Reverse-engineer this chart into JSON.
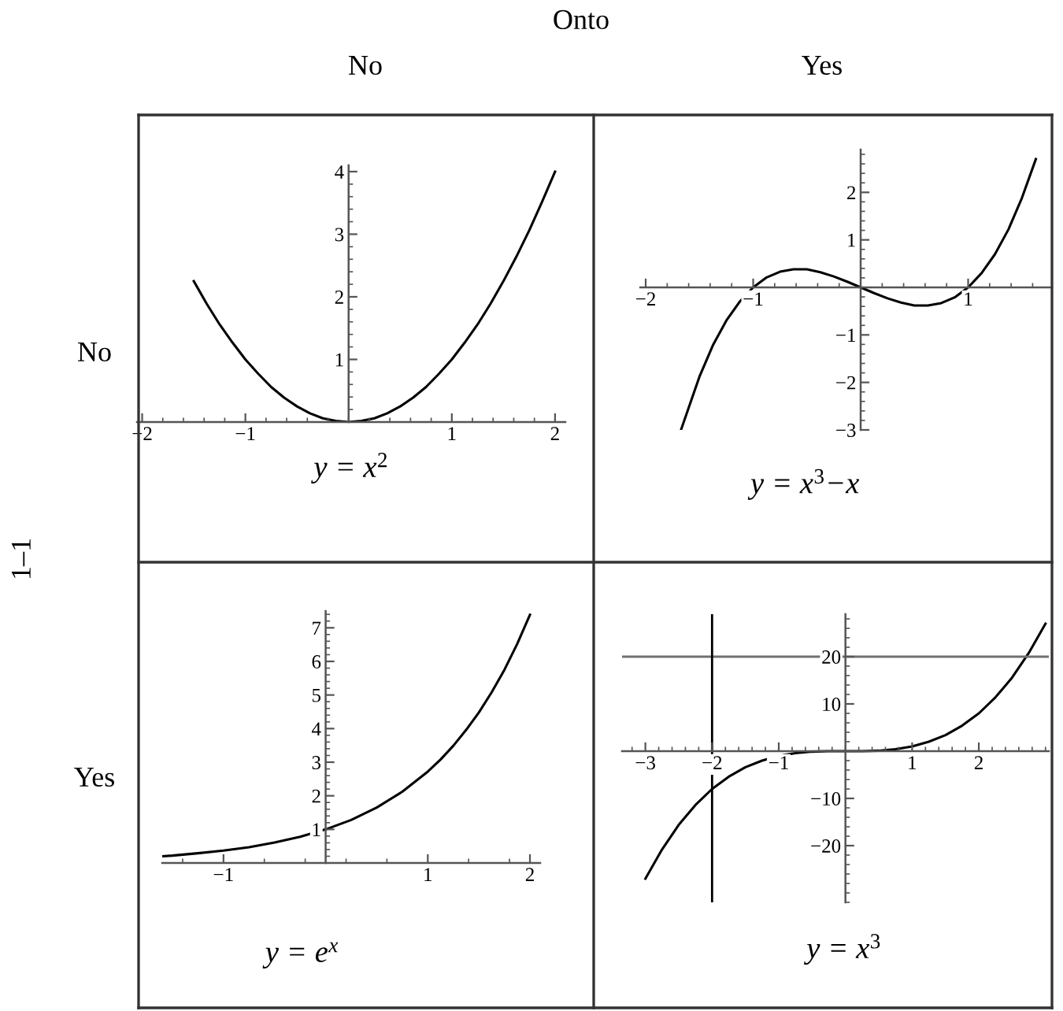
{
  "chart_data": [
    {
      "type": "line",
      "title": "No",
      "ylabel": "No",
      "xlabel": "y = x$^{2}$",
      "annotations": [
        "Onto",
        "1–1"
      ],
      "color": "#000000",
      "x": [
        -1.5,
        -1.375,
        -1.25,
        -1.125,
        -1,
        -0.875,
        -0.75,
        -0.625,
        -0.5,
        -0.375,
        -0.25,
        -0.125,
        0,
        0.125,
        0.25,
        0.375,
        0.5,
        0.625,
        0.75,
        0.875,
        1,
        1.125,
        1.25,
        1.375,
        1.5,
        1.625,
        1.75,
        1.875,
        2
      ],
      "values": [
        2.25,
        1.89,
        1.56,
        1.27,
        1,
        0.77,
        0.56,
        0.39,
        0.25,
        0.14,
        0.06,
        0.02,
        0,
        0.02,
        0.06,
        0.14,
        0.25,
        0.39,
        0.56,
        0.77,
        1,
        1.27,
        1.56,
        1.89,
        2.25,
        2.64,
        3.06,
        3.52,
        4
      ],
      "xlim": [
        -2.05,
        2.1
      ],
      "ylim": [
        0,
        4.1
      ],
      "xticks": [
        -2,
        -1,
        1,
        2
      ],
      "yticks": [
        1,
        2,
        3,
        4
      ]
    },
    {
      "type": "line",
      "title": "Yes",
      "xlabel": "y = x$^{3}$−x",
      "color": "#000000",
      "x": [
        -1.67,
        -1.5,
        -1.375,
        -1.25,
        -1.125,
        -1,
        -0.875,
        -0.75,
        -0.625,
        -0.5,
        -0.375,
        -0.25,
        -0.125,
        0,
        0.125,
        0.25,
        0.375,
        0.5,
        0.625,
        0.75,
        0.875,
        1,
        1.125,
        1.25,
        1.375,
        1.5,
        1.63
      ],
      "values": [
        -2.99,
        -1.88,
        -1.22,
        -0.7,
        -0.3,
        0,
        0.21,
        0.33,
        0.38,
        0.38,
        0.32,
        0.23,
        0.12,
        0,
        -0.12,
        -0.23,
        -0.32,
        -0.38,
        -0.38,
        -0.33,
        -0.21,
        0,
        0.3,
        0.7,
        1.22,
        1.88,
        2.7
      ],
      "xlim": [
        -2.05,
        1.78
      ],
      "ylim": [
        -3,
        2.9
      ],
      "xticks": [
        -2,
        -1,
        1
      ],
      "yticks": [
        -3,
        -2,
        -1,
        1,
        2
      ]
    },
    {
      "type": "line",
      "ylabel": "Yes",
      "xlabel": "y = e$^{x}$",
      "color": "#000000",
      "x": [
        -1.6,
        -1.5,
        -1.25,
        -1,
        -0.75,
        -0.5,
        -0.25,
        0,
        0.25,
        0.5,
        0.75,
        1,
        1.125,
        1.25,
        1.375,
        1.5,
        1.625,
        1.75,
        1.875,
        2
      ],
      "values": [
        0.2,
        0.22,
        0.29,
        0.37,
        0.47,
        0.61,
        0.78,
        1,
        1.28,
        1.65,
        2.12,
        2.72,
        3.08,
        3.49,
        3.96,
        4.48,
        5.08,
        5.75,
        6.52,
        7.39
      ],
      "xlim": [
        -1.6,
        2.1
      ],
      "ylim": [
        0,
        7.5
      ],
      "xticks": [
        -1,
        1,
        2
      ],
      "yticks": [
        1,
        2,
        3,
        4,
        5,
        6,
        7
      ]
    },
    {
      "type": "line",
      "xlabel": "y = x$^{3}$",
      "color": "#000000",
      "x": [
        -3,
        -2.75,
        -2.5,
        -2.25,
        -2,
        -1.75,
        -1.5,
        -1.25,
        -1,
        -0.75,
        -0.5,
        -0.25,
        0,
        0.25,
        0.5,
        0.75,
        1,
        1.25,
        1.5,
        1.75,
        2,
        2.25,
        2.5,
        2.75,
        3
      ],
      "values": [
        -27,
        -20.8,
        -15.6,
        -11.4,
        -8,
        -5.4,
        -3.4,
        -2,
        -1,
        -0.4,
        -0.1,
        0,
        0,
        0,
        0.1,
        0.4,
        1,
        2,
        3.4,
        5.4,
        8,
        11.4,
        15.6,
        20.8,
        27
      ],
      "xlim": [
        -3.35,
        3.05
      ],
      "ylim": [
        -32,
        29
      ],
      "xticks": [
        -3,
        -2,
        -1,
        1,
        2
      ],
      "yticks": [
        -20,
        -10,
        10,
        20
      ],
      "ref_lines": [
        {
          "axis": "y",
          "value": 20,
          "color": "#707070"
        },
        {
          "axis": "x",
          "value": -2,
          "color": "#000000"
        }
      ]
    }
  ]
}
